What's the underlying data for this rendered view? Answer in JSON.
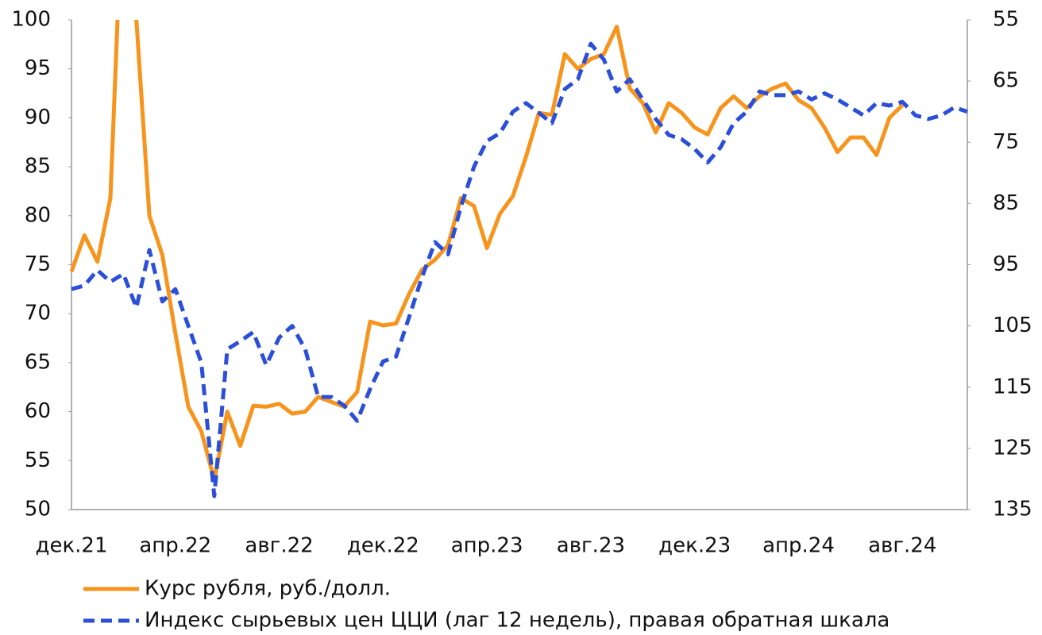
{
  "chart_data": {
    "type": "line",
    "categories": [
      "дек.21",
      null,
      null,
      null,
      null,
      null,
      null,
      null,
      "апр.22",
      null,
      null,
      null,
      null,
      null,
      null,
      null,
      "авг.22",
      null,
      null,
      null,
      null,
      null,
      null,
      null,
      "дек.22",
      null,
      null,
      null,
      null,
      null,
      null,
      null,
      "апр.23",
      null,
      null,
      null,
      null,
      null,
      null,
      null,
      "авг.23",
      null,
      null,
      null,
      null,
      null,
      null,
      null,
      "дек.23",
      null,
      null,
      null,
      null,
      null,
      null,
      null,
      "апр.24",
      null,
      null,
      null,
      null,
      null,
      null,
      null,
      "авг.24",
      null,
      null,
      null,
      null,
      null
    ],
    "series": [
      {
        "name": "Курс рубля, руб./долл.",
        "color": "#f7941d",
        "axis": "y",
        "values": [
          74.3,
          78,
          75.3,
          81.8,
          115,
          100,
          80,
          76,
          68,
          60.5,
          58,
          53,
          60,
          56.5,
          60.6,
          60.5,
          60.8,
          59.8,
          60,
          61.5,
          61,
          60.5,
          62,
          69.2,
          68.8,
          69,
          72,
          74.5,
          75.5,
          77,
          81.8,
          81,
          76.7,
          80.2,
          82,
          86,
          90.5,
          90.3,
          96.5,
          95,
          96,
          96.5,
          99.3,
          93,
          91.5,
          88.5,
          91.5,
          90.5,
          89,
          88.3,
          91,
          92.2,
          91,
          92.2,
          93,
          93.5,
          91.8,
          91,
          89,
          86.5,
          88,
          88,
          86.2,
          90,
          91.3,
          null,
          null,
          null,
          null,
          null
        ]
      },
      {
        "name": "Индекс сырьевых цен ЦЦИ (лаг 12 недель), правая обратная шкала",
        "color": "#2b4fd8",
        "axis": "y2",
        "dashed": true,
        "values": [
          99,
          98.4,
          95.9,
          97.8,
          96.5,
          102,
          92.6,
          101,
          99,
          105,
          111,
          132.8,
          108.8,
          107.5,
          106,
          111.4,
          106.9,
          105,
          108.8,
          116.6,
          116.6,
          118,
          120.5,
          115.3,
          110.8,
          110,
          103.6,
          97,
          91.3,
          93.3,
          85.5,
          79,
          74.8,
          73.5,
          70,
          68.6,
          70.2,
          71.9,
          66.3,
          64.7,
          58.9,
          61.5,
          66.7,
          64.7,
          68,
          71.2,
          73.8,
          74.5,
          76.1,
          78.3,
          75.8,
          71.9,
          70,
          66.7,
          67.3,
          67.3,
          66.7,
          68,
          67,
          68,
          69.3,
          70.6,
          68.6,
          69,
          68.4,
          70.6,
          71.2,
          70.6,
          69.3,
          70
        ]
      }
    ],
    "ylim": [
      50,
      100
    ],
    "yticks": [
      50,
      55,
      60,
      65,
      70,
      75,
      80,
      85,
      90,
      95,
      100
    ],
    "y2lim": [
      135,
      55
    ],
    "y2ticks": [
      135,
      125,
      115,
      105,
      95,
      85,
      75,
      65,
      55
    ],
    "grid": false,
    "legend": "bottom"
  }
}
